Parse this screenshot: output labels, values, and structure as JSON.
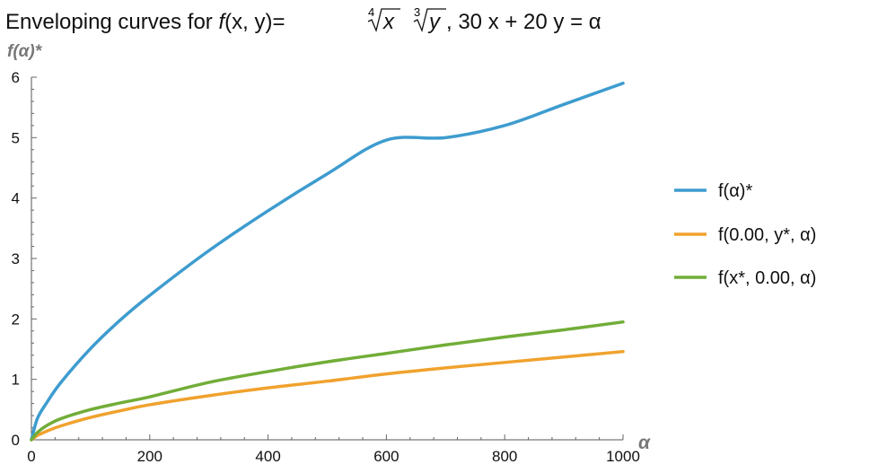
{
  "chart_data": {
    "type": "line",
    "title": {
      "prefix": "Enveloping curves for ",
      "func": "f",
      "args": "(x, y)",
      "eq": "=",
      "root1_index": "4",
      "root1_var": "x",
      "root2_index": "3",
      "root2_var": "y",
      "constraint": ", 30 x + 20 y = α"
    },
    "xlabel": "α",
    "ylabel": "f(α)*",
    "xlim": [
      0,
      1000
    ],
    "ylim": [
      0,
      6
    ],
    "x_ticks": [
      0,
      200,
      400,
      600,
      800,
      1000
    ],
    "y_ticks": [
      0,
      1,
      2,
      3,
      4,
      5,
      6
    ],
    "legend_position": "right",
    "grid": false,
    "series": [
      {
        "name": "f(α)*",
        "color": "#3e9ccf",
        "x": [
          0,
          10,
          25,
          50,
          100,
          150,
          200,
          300,
          400,
          500,
          600,
          700,
          800,
          900,
          1000
        ],
        "y": [
          0,
          0.35,
          0.6,
          0.95,
          1.51,
          1.98,
          2.39,
          3.13,
          3.79,
          4.4,
          4.96,
          5.0,
          5.2,
          5.55,
          5.9
        ]
      },
      {
        "name": "f(0.00, y*, α)",
        "color": "#f0a22e",
        "x": [
          0,
          10,
          25,
          50,
          100,
          150,
          200,
          300,
          400,
          500,
          600,
          700,
          800,
          900,
          1000
        ],
        "y": [
          0,
          0.07,
          0.14,
          0.23,
          0.37,
          0.48,
          0.58,
          0.73,
          0.86,
          0.97,
          1.09,
          1.19,
          1.28,
          1.37,
          1.46
        ]
      },
      {
        "name": "f(x*, 0.00, α)",
        "color": "#72ad38",
        "x": [
          0,
          10,
          25,
          50,
          100,
          150,
          200,
          300,
          400,
          500,
          600,
          700,
          800,
          900,
          1000
        ],
        "y": [
          0,
          0.12,
          0.23,
          0.35,
          0.5,
          0.61,
          0.71,
          0.95,
          1.13,
          1.29,
          1.43,
          1.57,
          1.7,
          1.82,
          1.95
        ]
      }
    ]
  }
}
